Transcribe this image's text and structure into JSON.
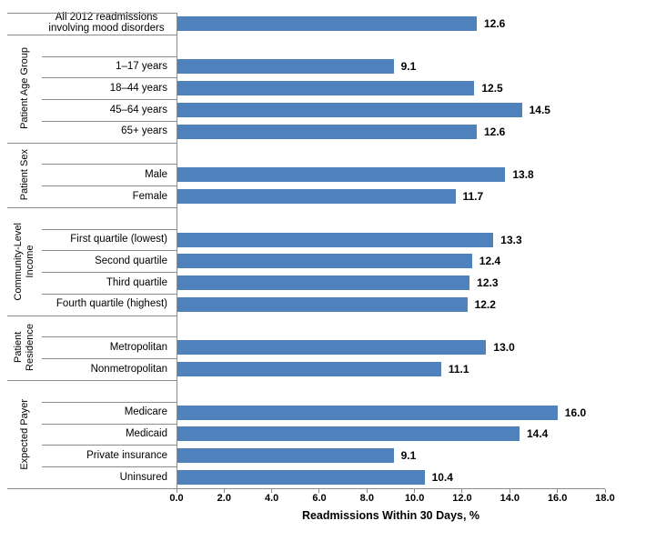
{
  "chart_data": {
    "type": "bar",
    "orientation": "horizontal",
    "title": "",
    "xlabel": "Readmissions Within 30 Days, %",
    "ylabel": "",
    "xlim": [
      0,
      18
    ],
    "xticks": [
      "0.0",
      "2.0",
      "4.0",
      "6.0",
      "8.0",
      "10.0",
      "12.0",
      "14.0",
      "16.0",
      "18.0"
    ],
    "grid": false,
    "legend": false,
    "bar_color": "#4F81BD",
    "value_labels_bold": true,
    "sections": [
      {
        "group": "",
        "rows": [
          {
            "label": "All 2012 readmissions\ninvolving mood disorders",
            "value": 12.6
          }
        ]
      },
      {
        "group": "Patient Age Group",
        "rows": [
          {
            "label": "1–17 years",
            "value": 9.1
          },
          {
            "label": "18–44 years",
            "value": 12.5
          },
          {
            "label": "45–64 years",
            "value": 14.5
          },
          {
            "label": "65+ years",
            "value": 12.6
          }
        ]
      },
      {
        "group": "Patient Sex",
        "rows": [
          {
            "label": "Male",
            "value": 13.8
          },
          {
            "label": "Female",
            "value": 11.7
          }
        ]
      },
      {
        "group": "Community-Level\nIncome",
        "rows": [
          {
            "label": "First quartile (lowest)",
            "value": 13.3
          },
          {
            "label": "Second quartile",
            "value": 12.4
          },
          {
            "label": "Third quartile",
            "value": 12.3
          },
          {
            "label": "Fourth quartile (highest)",
            "value": 12.2
          }
        ]
      },
      {
        "group": "Patient\nResidence",
        "rows": [
          {
            "label": "Metropolitan",
            "value": 13.0
          },
          {
            "label": "Nonmetropolitan",
            "value": 11.1
          }
        ]
      },
      {
        "group": "Expected Payer",
        "rows": [
          {
            "label": "Medicare",
            "value": 16.0
          },
          {
            "label": "Medicaid",
            "value": 14.4
          },
          {
            "label": "Private insurance",
            "value": 9.1
          },
          {
            "label": "Uninsured",
            "value": 10.4
          }
        ]
      }
    ]
  }
}
